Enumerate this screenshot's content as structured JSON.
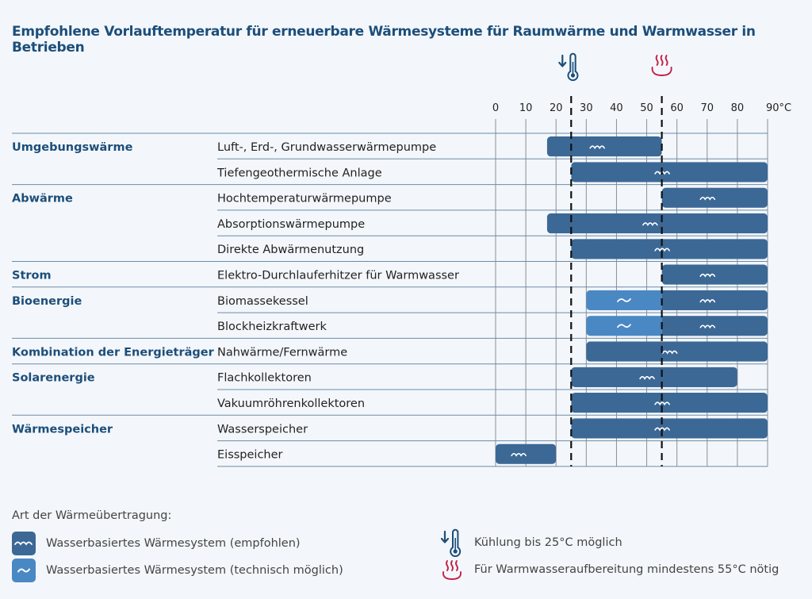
{
  "title": "Empfohlene Vorlauftemperatur für erneuerbare Wärmesysteme für Raumwärme und Warmwasser in Betrieben",
  "colors": {
    "title": "#1d4e7a",
    "recommended": "#3c6896",
    "possible": "#4a88c4",
    "thermometer": "#1d4e7a",
    "steam": "#c41e45",
    "grid": "#8a8f96",
    "row_line": "#6e8aa8"
  },
  "chart_data": {
    "type": "bar",
    "orientation": "horizontal-range",
    "title": "Empfohlene Vorlauftemperatur für erneuerbare Wärmesysteme für Raumwärme und Warmwasser in Betrieben",
    "xlabel": "°C",
    "xlim": [
      0,
      90
    ],
    "xticks": [
      0,
      10,
      20,
      30,
      40,
      50,
      60,
      70,
      80,
      90
    ],
    "xtick_labels": [
      "0",
      "10",
      "20",
      "30",
      "40",
      "50",
      "60",
      "70",
      "80",
      "90°C"
    ],
    "grid": true,
    "reference_lines": [
      {
        "value": 25,
        "style": "dashed",
        "icon": "thermometer-cooling-icon",
        "meaning": "Kühlung bis 25°C möglich"
      },
      {
        "value": 55,
        "style": "dashed",
        "icon": "hot-water-steam-icon",
        "meaning": "Für Warmwasseraufbereitung mindestens 55°C nötig"
      }
    ],
    "groups": [
      {
        "category": "Umgebungswärme",
        "rows": [
          {
            "label": "Luft-, Erd-, Grundwasserwärmepumpe",
            "segments": [
              {
                "from": 17,
                "to": 55,
                "type": "recommended"
              }
            ]
          },
          {
            "label": "Tiefengeothermische Anlage",
            "segments": [
              {
                "from": 25,
                "to": 90,
                "type": "recommended"
              }
            ]
          }
        ]
      },
      {
        "category": "Abwärme",
        "rows": [
          {
            "label": "Hochtemperaturwärmepumpe",
            "segments": [
              {
                "from": 55,
                "to": 90,
                "type": "recommended"
              }
            ]
          },
          {
            "label": "Absorptionswärmepumpe",
            "segments": [
              {
                "from": 17,
                "to": 90,
                "type": "recommended"
              }
            ]
          },
          {
            "label": "Direkte Abwärmenutzung",
            "segments": [
              {
                "from": 25,
                "to": 90,
                "type": "recommended"
              }
            ]
          }
        ]
      },
      {
        "category": "Strom",
        "rows": [
          {
            "label": "Elektro-Durchlauferhitzer für Warmwasser",
            "segments": [
              {
                "from": 55,
                "to": 90,
                "type": "recommended"
              }
            ]
          }
        ]
      },
      {
        "category": "Bioenergie",
        "rows": [
          {
            "label": "Biomassekessel",
            "segments": [
              {
                "from": 30,
                "to": 55,
                "type": "possible"
              },
              {
                "from": 55,
                "to": 90,
                "type": "recommended"
              }
            ]
          },
          {
            "label": "Blockheizkraftwerk",
            "segments": [
              {
                "from": 30,
                "to": 55,
                "type": "possible"
              },
              {
                "from": 55,
                "to": 90,
                "type": "recommended"
              }
            ]
          }
        ]
      },
      {
        "category": "Kombination der Energieträger",
        "rows": [
          {
            "label": "Nahwärme/Fernwärme",
            "segments": [
              {
                "from": 30,
                "to": 90,
                "type": "recommended"
              }
            ]
          }
        ]
      },
      {
        "category": "Solarenergie",
        "rows": [
          {
            "label": "Flachkollektoren",
            "segments": [
              {
                "from": 25,
                "to": 80,
                "type": "recommended"
              }
            ]
          },
          {
            "label": "Vakuumröhrenkollektoren",
            "segments": [
              {
                "from": 25,
                "to": 90,
                "type": "recommended"
              }
            ]
          }
        ]
      },
      {
        "category": "Wärmespeicher",
        "rows": [
          {
            "label": "Wasserspeicher",
            "segments": [
              {
                "from": 25,
                "to": 90,
                "type": "recommended"
              }
            ]
          },
          {
            "label": "Eisspeicher",
            "segments": [
              {
                "from": 0,
                "to": 20,
                "type": "recommended"
              }
            ]
          }
        ]
      }
    ]
  },
  "legend": {
    "title": "Art der Wärmeübertragung:",
    "recommended_label": "Wasserbasiertes Wärmesystem (empfohlen)",
    "possible_label": "Wasserbasiertes Wärmesystem (technisch möglich)",
    "cooling_label": "Kühlung bis 25°C möglich",
    "hotwater_label": "Für Warmwasseraufbereitung mindestens 55°C nötig"
  }
}
